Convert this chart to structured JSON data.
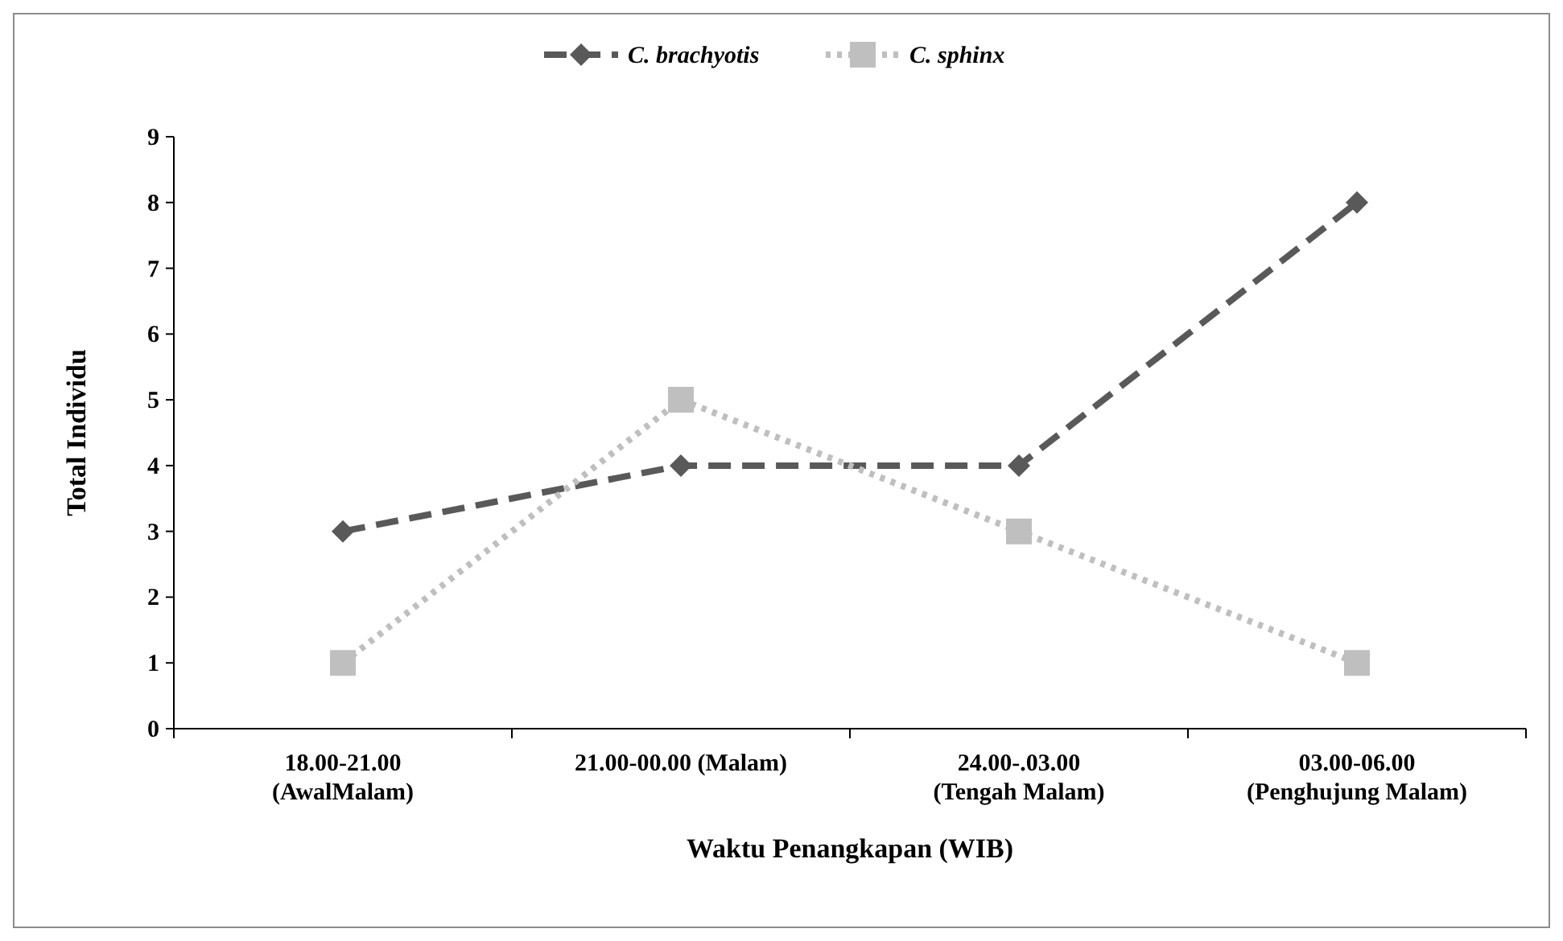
{
  "chart_data": {
    "type": "line",
    "xlabel": "Waktu Penangkapan (WIB)",
    "ylabel": "Total Individu",
    "categories": [
      "18.00-21.00\n(AwalMalam)",
      "21.00-00.00 (Malam)",
      "24.00-.03.00\n(Tengah Malam)",
      "03.00-06.00\n(Penghujung Malam)"
    ],
    "series": [
      {
        "name": "C. brachyotis",
        "color": "#595959",
        "values": [
          3,
          4,
          4,
          8
        ],
        "marker": "diamond",
        "line_style": "dashed"
      },
      {
        "name": "C. sphinx",
        "color": "#bfbfbf",
        "values": [
          1,
          5,
          3,
          1
        ],
        "marker": "square",
        "line_style": "dotted"
      }
    ],
    "ylim": [
      0,
      9
    ],
    "yticks": [
      0,
      1,
      2,
      3,
      4,
      5,
      6,
      7,
      8,
      9
    ],
    "grid": false,
    "legend": "top"
  }
}
